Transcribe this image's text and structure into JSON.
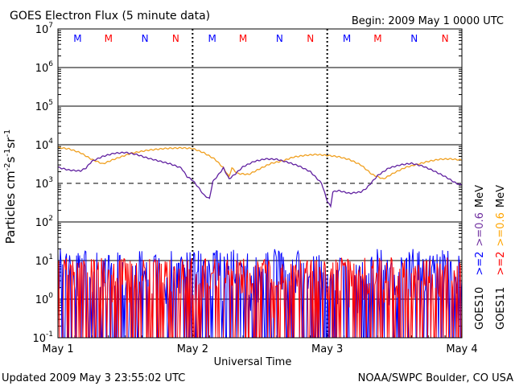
{
  "chart_data": {
    "type": "line",
    "title": "GOES Electron Flux (5 minute data)",
    "begin_label": "Begin: 2009 May 1 0000 UTC",
    "xlabel": "Universal Time",
    "ylabel_main": "Particles cm",
    "ylabel_exp1": "-2",
    "ylabel_s": "s",
    "ylabel_exp2": "-1",
    "ylabel_sr": "sr",
    "ylabel_exp3": "-1",
    "updated": "Updated 2009 May  3 23:55:02 UTC",
    "credit": "NOAA/SWPC Boulder, CO USA",
    "y_log": true,
    "ylim": [
      0.1,
      10000000
    ],
    "y_ticks": [
      {
        "base": "10",
        "exp": "7",
        "value": 10000000
      },
      {
        "base": "10",
        "exp": "6",
        "value": 1000000
      },
      {
        "base": "10",
        "exp": "5",
        "value": 100000
      },
      {
        "base": "10",
        "exp": "4",
        "value": 10000
      },
      {
        "base": "10",
        "exp": "3",
        "value": 1000
      },
      {
        "base": "10",
        "exp": "2",
        "value": 100
      },
      {
        "base": "10",
        "exp": "1",
        "value": 10
      },
      {
        "base": "10",
        "exp": "0",
        "value": 1
      },
      {
        "base": "10",
        "exp": "-1",
        "value": 0.1
      }
    ],
    "xlim": [
      0,
      72
    ],
    "x_ticks": [
      {
        "label": "May 1",
        "hour": 0
      },
      {
        "label": "May 2",
        "hour": 24
      },
      {
        "label": "May 3",
        "hour": 48
      },
      {
        "label": "May 4",
        "hour": 72
      }
    ],
    "day_markers_hours": [
      24,
      48
    ],
    "threshold_value": 1000,
    "mn_markers": [
      {
        "label": "M",
        "hour": 3.5,
        "color": "#0000ff"
      },
      {
        "label": "M",
        "hour": 9,
        "color": "#ff0000"
      },
      {
        "label": "N",
        "hour": 15.5,
        "color": "#0000ff"
      },
      {
        "label": "N",
        "hour": 21,
        "color": "#ff0000"
      },
      {
        "label": "M",
        "hour": 27.5,
        "color": "#0000ff"
      },
      {
        "label": "M",
        "hour": 33,
        "color": "#ff0000"
      },
      {
        "label": "N",
        "hour": 39.5,
        "color": "#0000ff"
      },
      {
        "label": "N",
        "hour": 45,
        "color": "#ff0000"
      },
      {
        "label": "M",
        "hour": 51.5,
        "color": "#0000ff"
      },
      {
        "label": "M",
        "hour": 57,
        "color": "#ff0000"
      },
      {
        "label": "N",
        "hour": 63.5,
        "color": "#0000ff"
      },
      {
        "label": "N",
        "hour": 69,
        "color": "#ff0000"
      }
    ],
    "legend_right": [
      {
        "text": "GOES10",
        "color": "#000000"
      },
      {
        "text": ">=2",
        "color": "#0000ff"
      },
      {
        "text": ">=0.6",
        "color": "#7030a0"
      },
      {
        "text": "MeV",
        "color": "#000000"
      }
    ],
    "legend_right2": [
      {
        "text": "GOES11",
        "color": "#000000"
      },
      {
        "text": ">=2",
        "color": "#ff0000"
      },
      {
        "text": ">=0.6",
        "color": "#ffa500"
      },
      {
        "text": "MeV",
        "color": "#000000"
      }
    ],
    "series": [
      {
        "name": "GOES11 >=0.6 MeV",
        "color": "#f0a020",
        "points": [
          [
            0,
            8500
          ],
          [
            2,
            7800
          ],
          [
            4,
            6200
          ],
          [
            6,
            4200
          ],
          [
            8,
            3200
          ],
          [
            10,
            4200
          ],
          [
            13,
            6000
          ],
          [
            16,
            7200
          ],
          [
            19,
            8000
          ],
          [
            22,
            8300
          ],
          [
            24,
            8000
          ],
          [
            26,
            6200
          ],
          [
            28,
            4200
          ],
          [
            29.5,
            2500
          ],
          [
            30.5,
            1500
          ],
          [
            31,
            2500
          ],
          [
            32,
            1800
          ],
          [
            34,
            1700
          ],
          [
            36,
            2400
          ],
          [
            38,
            3300
          ],
          [
            40,
            3800
          ],
          [
            42,
            4800
          ],
          [
            44,
            5300
          ],
          [
            46,
            5600
          ],
          [
            48,
            5300
          ],
          [
            50,
            4900
          ],
          [
            52,
            4100
          ],
          [
            54,
            3000
          ],
          [
            56,
            1700
          ],
          [
            58,
            1300
          ],
          [
            60,
            1900
          ],
          [
            62,
            2600
          ],
          [
            64,
            3100
          ],
          [
            66,
            3700
          ],
          [
            68,
            4200
          ],
          [
            70,
            4300
          ],
          [
            72,
            4000
          ]
        ]
      },
      {
        "name": "GOES10 >=0.6 MeV",
        "color": "#6020a0",
        "points": [
          [
            0,
            2600
          ],
          [
            2,
            2200
          ],
          [
            4,
            2100
          ],
          [
            5,
            2500
          ],
          [
            6,
            3700
          ],
          [
            8,
            5000
          ],
          [
            10,
            6000
          ],
          [
            12,
            6300
          ],
          [
            14,
            5600
          ],
          [
            16,
            4500
          ],
          [
            18,
            3800
          ],
          [
            20,
            3200
          ],
          [
            22,
            2500
          ],
          [
            23,
            1500
          ],
          [
            24,
            1200
          ],
          [
            25,
            800
          ],
          [
            26,
            500
          ],
          [
            27,
            400
          ],
          [
            27.6,
            1100
          ],
          [
            28.5,
            1600
          ],
          [
            29.5,
            2500
          ],
          [
            30.5,
            1300
          ],
          [
            31.5,
            1700
          ],
          [
            33,
            2700
          ],
          [
            35,
            3700
          ],
          [
            37,
            4300
          ],
          [
            39,
            4200
          ],
          [
            41,
            3500
          ],
          [
            43,
            2800
          ],
          [
            45,
            2000
          ],
          [
            47,
            1000
          ],
          [
            48,
            350
          ],
          [
            48.6,
            250
          ],
          [
            49,
            600
          ],
          [
            50,
            650
          ],
          [
            52,
            550
          ],
          [
            54,
            600
          ],
          [
            55,
            750
          ],
          [
            57,
            1600
          ],
          [
            59,
            2500
          ],
          [
            61,
            3000
          ],
          [
            63,
            3300
          ],
          [
            65,
            2800
          ],
          [
            67,
            2100
          ],
          [
            69,
            1500
          ],
          [
            71,
            1000
          ],
          [
            72,
            900
          ]
        ]
      },
      {
        "name": "GOES10 >=2 MeV",
        "color": "#0000ff",
        "range": [
          0.3,
          20
        ],
        "noise": 1
      },
      {
        "name": "GOES11 >=2 MeV",
        "color": "#ff0000",
        "range": [
          0.3,
          12
        ],
        "noise": 2
      }
    ]
  }
}
